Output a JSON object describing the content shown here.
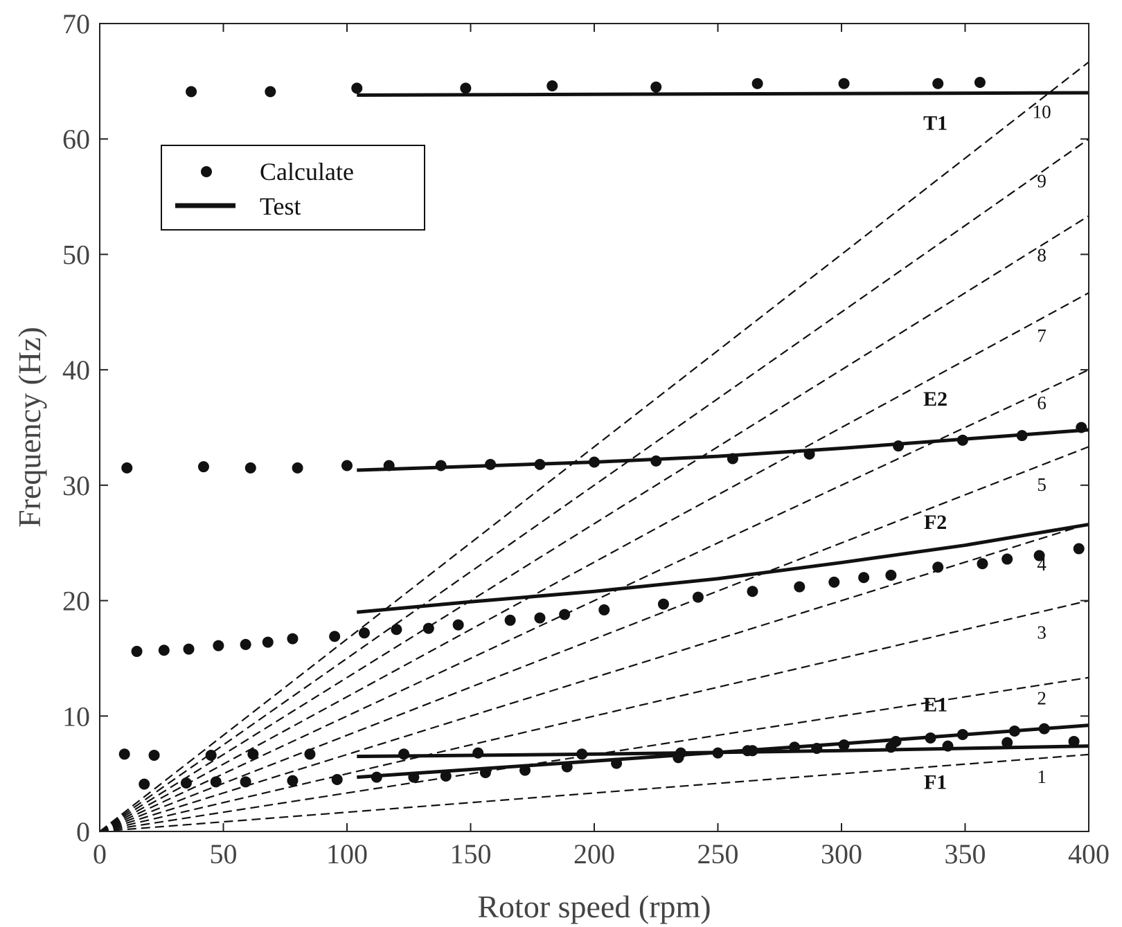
{
  "chart_data": {
    "type": "scatter",
    "title": "",
    "xlabel": "Rotor speed (rpm)",
    "ylabel": "Frequency (Hz)",
    "xlim": [
      0,
      400
    ],
    "ylim": [
      0,
      70
    ],
    "xticks": [
      0,
      50,
      100,
      150,
      200,
      250,
      300,
      350,
      400
    ],
    "yticks": [
      0,
      10,
      20,
      30,
      40,
      50,
      60,
      70
    ],
    "grid": false,
    "legend": {
      "placement": "top-left",
      "entries": [
        {
          "name": "Calculate",
          "marker": "dot"
        },
        {
          "name": "Test",
          "marker": "line"
        }
      ]
    },
    "harmonics": {
      "orders": [
        1,
        2,
        3,
        4,
        5,
        6,
        7,
        8,
        9,
        10
      ],
      "x_end": 400,
      "labels": [
        {
          "text": "1",
          "x": 381,
          "y": 4.2
        },
        {
          "text": "2",
          "x": 381,
          "y": 11
        },
        {
          "text": "3",
          "x": 381,
          "y": 16.7
        },
        {
          "text": "4",
          "x": 381,
          "y": 22.6
        },
        {
          "text": "5",
          "x": 381,
          "y": 29.5
        },
        {
          "text": "6",
          "x": 381,
          "y": 36.6
        },
        {
          "text": "7",
          "x": 381,
          "y": 42.4
        },
        {
          "text": "8",
          "x": 381,
          "y": 49.4
        },
        {
          "text": "9",
          "x": 381,
          "y": 55.8
        },
        {
          "text": "10",
          "x": 381,
          "y": 61.8
        }
      ]
    },
    "mode_labels": [
      {
        "text": "T1",
        "x": 338,
        "y": 60.8
      },
      {
        "text": "E2",
        "x": 338,
        "y": 36.9
      },
      {
        "text": "F2",
        "x": 338,
        "y": 26.2
      },
      {
        "text": "E1",
        "x": 338,
        "y": 10.4
      },
      {
        "text": "F1",
        "x": 338,
        "y": 3.7
      }
    ],
    "series": [
      {
        "name": "T1 Calculate",
        "kind": "calculate",
        "x": [
          37,
          69,
          104,
          148,
          183,
          225,
          266,
          301,
          339,
          356
        ],
        "y": [
          64.1,
          64.1,
          64.4,
          64.4,
          64.6,
          64.5,
          64.8,
          64.8,
          64.8,
          64.9
        ]
      },
      {
        "name": "T1 Test",
        "kind": "test",
        "x": [
          104,
          400
        ],
        "y": [
          63.8,
          64.0
        ]
      },
      {
        "name": "E2 Calculate",
        "kind": "calculate",
        "x": [
          11,
          42,
          61,
          80,
          100,
          117,
          138,
          158,
          178,
          200,
          225,
          256,
          287,
          323,
          349,
          373,
          397
        ],
        "y": [
          31.5,
          31.6,
          31.5,
          31.5,
          31.7,
          31.7,
          31.7,
          31.8,
          31.8,
          32.0,
          32.1,
          32.3,
          32.7,
          33.4,
          33.9,
          34.3,
          35.0
        ]
      },
      {
        "name": "E2 Test",
        "kind": "test",
        "x": [
          104,
          200,
          250,
          300,
          350,
          400
        ],
        "y": [
          31.3,
          32.0,
          32.5,
          33.2,
          34.0,
          34.8
        ]
      },
      {
        "name": "F2 Calculate",
        "kind": "calculate",
        "x": [
          15,
          26,
          36,
          48,
          59,
          68,
          78,
          95,
          107,
          120,
          133,
          145,
          166,
          178,
          188,
          204,
          228,
          242,
          264,
          283,
          297,
          309,
          320,
          339,
          357,
          367,
          380,
          396
        ],
        "y": [
          15.6,
          15.7,
          15.8,
          16.1,
          16.2,
          16.4,
          16.7,
          16.9,
          17.2,
          17.5,
          17.6,
          17.9,
          18.3,
          18.5,
          18.8,
          19.2,
          19.7,
          20.3,
          20.8,
          21.2,
          21.6,
          22.0,
          22.2,
          22.9,
          23.2,
          23.6,
          23.9,
          24.5
        ]
      },
      {
        "name": "F2 Test",
        "kind": "test",
        "x": [
          104,
          150,
          200,
          250,
          300,
          350,
          400
        ],
        "y": [
          19.0,
          19.9,
          20.8,
          21.9,
          23.3,
          24.8,
          26.6
        ]
      },
      {
        "name": "E1 Calculate",
        "kind": "calculate",
        "x": [
          10,
          22,
          45,
          62,
          85,
          123,
          153,
          195,
          235,
          262,
          290,
          320,
          343,
          367,
          394
        ],
        "y": [
          6.7,
          6.6,
          6.6,
          6.7,
          6.7,
          6.7,
          6.8,
          6.7,
          6.8,
          7.0,
          7.2,
          7.3,
          7.4,
          7.7,
          7.8
        ]
      },
      {
        "name": "E1 Test",
        "kind": "test",
        "x": [
          104,
          200,
          300,
          400
        ],
        "y": [
          6.5,
          6.7,
          7.0,
          7.4
        ]
      },
      {
        "name": "F1 Calculate",
        "kind": "calculate",
        "x": [
          18,
          35,
          47,
          59,
          78,
          96,
          112,
          127,
          140,
          156,
          172,
          189,
          209,
          234,
          250,
          264,
          281,
          301,
          322,
          336,
          349,
          370,
          382
        ],
        "y": [
          4.1,
          4.2,
          4.3,
          4.3,
          4.4,
          4.5,
          4.7,
          4.7,
          4.8,
          5.1,
          5.3,
          5.6,
          5.9,
          6.4,
          6.8,
          7.0,
          7.3,
          7.5,
          7.8,
          8.1,
          8.4,
          8.7,
          8.9
        ]
      },
      {
        "name": "F1 Test",
        "kind": "test",
        "x": [
          104,
          200,
          300,
          400
        ],
        "y": [
          4.7,
          6.1,
          7.6,
          9.2
        ]
      }
    ]
  }
}
